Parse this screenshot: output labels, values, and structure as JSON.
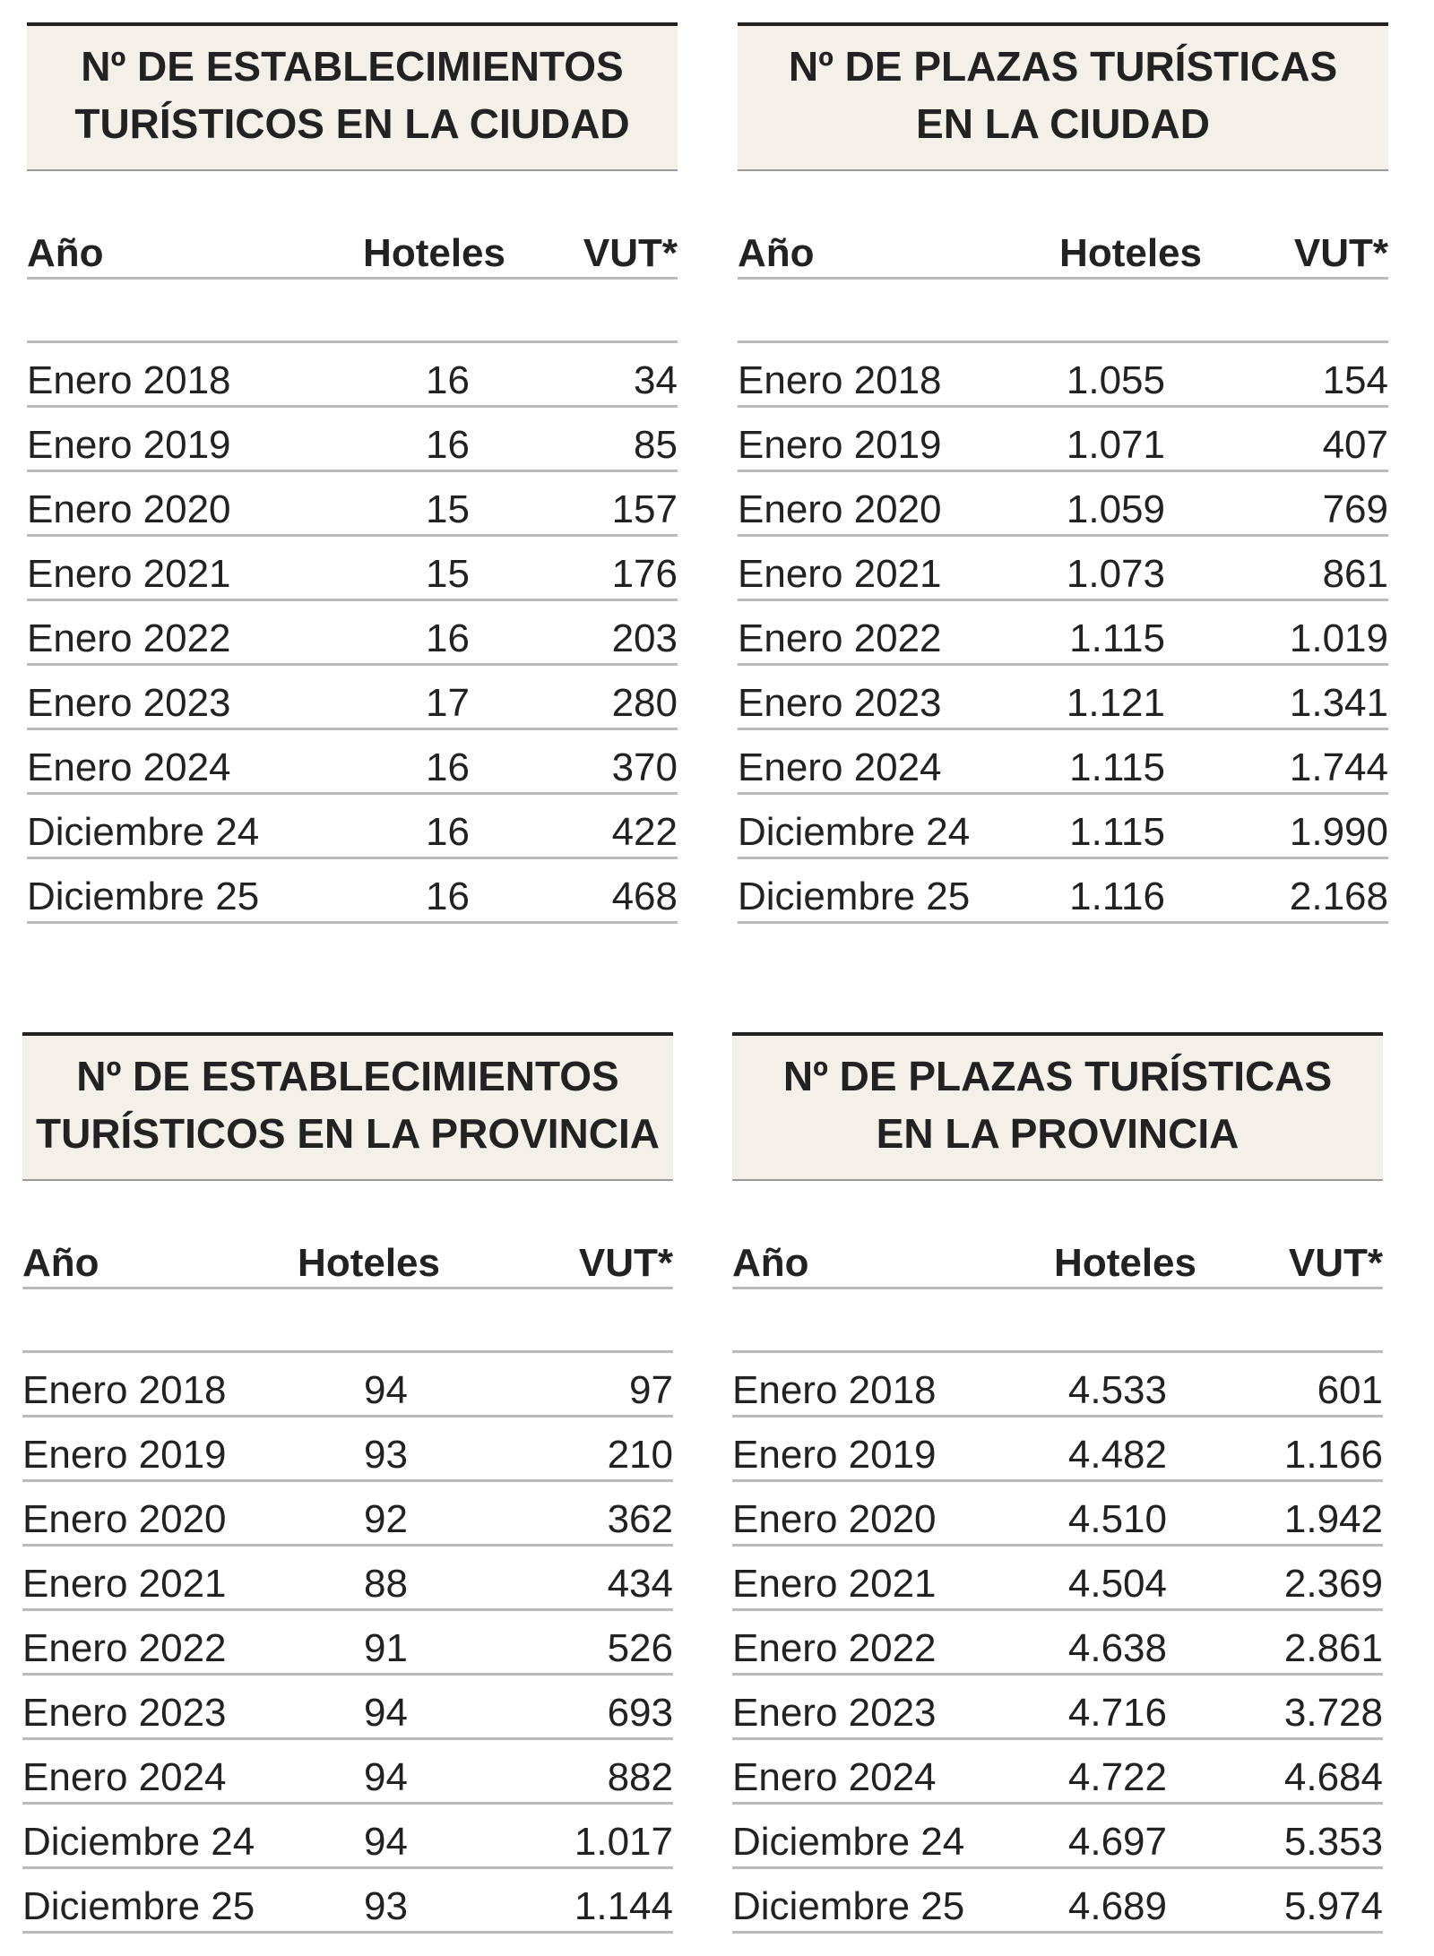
{
  "tables": [
    {
      "title_lines": [
        "Nº DE ESTABLECIMIENTOS",
        "TURÍSTICOS EN LA CIUDAD"
      ],
      "headers": [
        "Año",
        "Hoteles",
        "VUT*"
      ],
      "rows": [
        [
          "Enero 2018",
          "16",
          "34"
        ],
        [
          "Enero 2019",
          "16",
          "85"
        ],
        [
          "Enero 2020",
          "15",
          "157"
        ],
        [
          "Enero 2021",
          "15",
          "176"
        ],
        [
          "Enero 2022",
          "16",
          "203"
        ],
        [
          "Enero 2023",
          "17",
          "280"
        ],
        [
          "Enero 2024",
          "16",
          "370"
        ],
        [
          "Diciembre 24",
          "16",
          "422"
        ],
        [
          "Diciembre 25",
          "16",
          "468"
        ]
      ]
    },
    {
      "title_lines": [
        "Nº DE PLAZAS TURÍSTICAS",
        "EN LA CIUDAD"
      ],
      "headers": [
        "Año",
        "Hoteles",
        "VUT*"
      ],
      "rows": [
        [
          "Enero 2018",
          "1.055",
          "154"
        ],
        [
          "Enero 2019",
          "1.071",
          "407"
        ],
        [
          "Enero 2020",
          "1.059",
          "769"
        ],
        [
          "Enero 2021",
          "1.073",
          "861"
        ],
        [
          "Enero 2022",
          "1.115",
          "1.019"
        ],
        [
          "Enero 2023",
          "1.121",
          "1.341"
        ],
        [
          "Enero 2024",
          "1.115",
          "1.744"
        ],
        [
          "Diciembre 24",
          "1.115",
          "1.990"
        ],
        [
          "Diciembre 25",
          "1.116",
          "2.168"
        ]
      ]
    },
    {
      "title_lines": [
        "Nº DE ESTABLECIMIENTOS",
        "TURÍSTICOS EN LA PROVINCIA"
      ],
      "headers": [
        "Año",
        "Hoteles",
        "VUT*"
      ],
      "rows": [
        [
          "Enero 2018",
          "94",
          "97"
        ],
        [
          "Enero 2019",
          "93",
          "210"
        ],
        [
          "Enero 2020",
          "92",
          "362"
        ],
        [
          "Enero 2021",
          "88",
          "434"
        ],
        [
          "Enero 2022",
          "91",
          "526"
        ],
        [
          "Enero 2023",
          "94",
          "693"
        ],
        [
          "Enero 2024",
          "94",
          "882"
        ],
        [
          "Diciembre 24",
          "94",
          "1.017"
        ],
        [
          "Diciembre 25",
          "93",
          "1.144"
        ]
      ]
    },
    {
      "title_lines": [
        "Nº DE PLAZAS TURÍSTICAS",
        "EN LA PROVINCIA"
      ],
      "headers": [
        "Año",
        "Hoteles",
        "VUT*"
      ],
      "rows": [
        [
          "Enero 2018",
          "4.533",
          "601"
        ],
        [
          "Enero 2019",
          "4.482",
          "1.166"
        ],
        [
          "Enero 2020",
          "4.510",
          "1.942"
        ],
        [
          "Enero 2021",
          "4.504",
          "2.369"
        ],
        [
          "Enero 2022",
          "4.638",
          "2.861"
        ],
        [
          "Enero 2023",
          "4.716",
          "3.728"
        ],
        [
          "Enero 2024",
          "4.722",
          "4.684"
        ],
        [
          "Diciembre 24",
          "4.697",
          "5.353"
        ],
        [
          "Diciembre 25",
          "4.689",
          "5.974"
        ]
      ]
    }
  ]
}
